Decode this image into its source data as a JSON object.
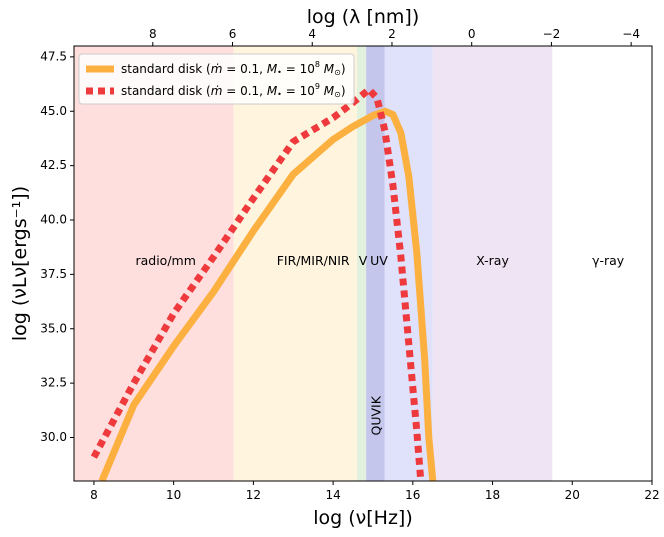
{
  "chart_data": {
    "type": "line",
    "xlabel": "log (ν[Hz])",
    "ylabel": "log (νLν[ergs⁻¹])",
    "top_xlabel": "log (λ [nm])",
    "xlim": [
      7.5,
      22
    ],
    "ylim": [
      28,
      48
    ],
    "xticks": [
      8,
      10,
      12,
      14,
      16,
      18,
      20,
      22
    ],
    "xtick_labels": [
      "8",
      "10",
      "12",
      "14",
      "16",
      "18",
      "20",
      "22"
    ],
    "yticks": [
      30,
      32.5,
      35,
      37.5,
      40,
      42.5,
      45,
      47.5
    ],
    "ytick_labels": [
      "30.0",
      "32.5",
      "35.0",
      "37.5",
      "40.0",
      "42.5",
      "45.0",
      "47.5"
    ],
    "top_ticks": [
      8,
      6,
      4,
      2,
      0,
      -2,
      -4
    ],
    "top_tick_labels": [
      "8",
      "6",
      "4",
      "2",
      "0",
      "−2",
      "−4"
    ],
    "regions": [
      {
        "name": "radio/mm",
        "from": 7.5,
        "to": 11.5,
        "color": "#ffdede",
        "label_x": 9.8
      },
      {
        "name": "FIR/MIR/NIR",
        "from": 11.5,
        "to": 14.6,
        "color": "#fff4dd",
        "label_x": 13.5
      },
      {
        "name": "V",
        "from": 14.6,
        "to": 14.9,
        "color": "#e2f0de",
        "label_x": 14.75
      },
      {
        "name": "UV",
        "from": 14.9,
        "to": 16.5,
        "color": "#e0e1fb",
        "label_x": 15.15
      },
      {
        "name": "X-ray",
        "from": 16.5,
        "to": 19.5,
        "color": "#efe4f3",
        "label_x": 18
      },
      {
        "name": "γ-ray",
        "from": 19.5,
        "to": 22,
        "color": "#ffffff",
        "label_x": 20.9
      }
    ],
    "region_label_y": 38.1,
    "quvik_band": {
      "label": "QUVIK",
      "from": 14.83,
      "to": 15.29,
      "color": "#c5c6ec",
      "label_x": 15.1,
      "label_y": 31
    },
    "legend_position": "upper-left",
    "series": [
      {
        "name": "standard disk (ṁ = 0.1, M• = 10⁸ M⊙)",
        "legend_parts": [
          "standard disk (",
          "ṁ",
          " = 0.1, ",
          "M",
          "•",
          " = 10",
          "8",
          " ",
          "M",
          "⊙",
          ")"
        ],
        "color": "#fbb040",
        "style": "solid",
        "points": [
          [
            8.2,
            28
          ],
          [
            9,
            31.5
          ],
          [
            10,
            34.2
          ],
          [
            11,
            36.7
          ],
          [
            12,
            39.5
          ],
          [
            13,
            42.1
          ],
          [
            14,
            43.7
          ],
          [
            14.5,
            44.3
          ],
          [
            15,
            44.8
          ],
          [
            15.3,
            45
          ],
          [
            15.5,
            44.85
          ],
          [
            15.7,
            44
          ],
          [
            15.9,
            42
          ],
          [
            16.1,
            38.5
          ],
          [
            16.3,
            33.5
          ],
          [
            16.4,
            30
          ],
          [
            16.5,
            28
          ]
        ]
      },
      {
        "name": "standard disk (ṁ = 0.1, M• = 10⁹ M⊙)",
        "legend_parts": [
          "standard disk (",
          "ṁ",
          " = 0.1, ",
          "M",
          "•",
          " = 10",
          "9",
          " ",
          "M",
          "⊙",
          ")"
        ],
        "color": "#ef3a3d",
        "style": "dotted",
        "points": [
          [
            8,
            29.1
          ],
          [
            9,
            32.5
          ],
          [
            10,
            35.7
          ],
          [
            11,
            38.3
          ],
          [
            12,
            41
          ],
          [
            13,
            43.6
          ],
          [
            14,
            44.7
          ],
          [
            14.5,
            45.4
          ],
          [
            14.9,
            46
          ],
          [
            15.1,
            45.6
          ],
          [
            15.3,
            44.1
          ],
          [
            15.5,
            41.6
          ],
          [
            15.7,
            38.3
          ],
          [
            15.9,
            34.3
          ],
          [
            16.1,
            30.3
          ],
          [
            16.2,
            28
          ]
        ]
      }
    ]
  }
}
